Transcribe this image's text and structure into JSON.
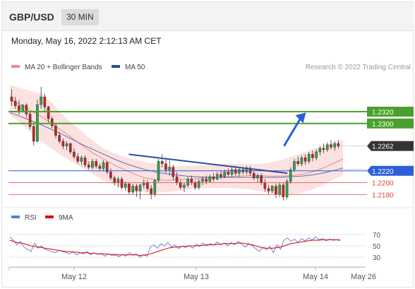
{
  "header": {
    "pair": "GBP/USD",
    "timeframe": "30 MIN"
  },
  "date_line": "Monday, May 16, 2022 2:12:13 AM CET",
  "legend": {
    "items": [
      {
        "label": "MA 20 + Bollinger Bands",
        "color": "#f08c8c"
      },
      {
        "label": "MA 50",
        "color": "#2b4e8c"
      }
    ],
    "credit": "Research © 2022 Trading Central"
  },
  "rsi_legend": {
    "items": [
      {
        "label": "RSI",
        "color": "#5b7fd0"
      },
      {
        "label": "9MA",
        "color": "#e00000"
      }
    ]
  },
  "chart_data": [
    {
      "type": "candlestick",
      "x_ticks": [
        "May 12",
        "May 13",
        "May 14",
        "May 26"
      ],
      "ylim": [
        1.216,
        1.2375
      ],
      "levels": [
        {
          "value": 1.232,
          "label": "1.2320",
          "color": "#4aa02c",
          "kind": "resistance"
        },
        {
          "value": 1.23,
          "label": "1.2300",
          "color": "#4aa02c",
          "kind": "resistance"
        },
        {
          "value": 1.2262,
          "label": "1.2262",
          "color": "#333333",
          "kind": "last-price"
        },
        {
          "value": 1.222,
          "label": "1.2220",
          "color": "#2b5fd8",
          "kind": "pivot"
        },
        {
          "value": 1.22,
          "label": "1.2200",
          "color": "#e04040",
          "kind": "support"
        },
        {
          "value": 1.218,
          "label": "1.2180",
          "color": "#e04040",
          "kind": "support"
        }
      ],
      "series": [
        {
          "name": "MA 20",
          "values": [
            1.234,
            1.2332,
            1.2322,
            1.2312,
            1.23,
            1.2288,
            1.2275,
            1.2262,
            1.225,
            1.224,
            1.223,
            1.2222,
            1.2214,
            1.2208,
            1.2205,
            1.2204,
            1.2205,
            1.2206,
            1.2207,
            1.2208,
            1.2209,
            1.221,
            1.2211,
            1.2212,
            1.2212,
            1.2211,
            1.2211,
            1.2212,
            1.2214,
            1.2218,
            1.2224,
            1.2232,
            1.224
          ]
        },
        {
          "name": "MA 50",
          "values": [
            1.2318,
            1.2312,
            1.2305,
            1.2298,
            1.229,
            1.2282,
            1.2273,
            1.2264,
            1.2256,
            1.2248,
            1.224,
            1.2233,
            1.2227,
            1.2222,
            1.2218,
            1.2215,
            1.2213,
            1.2211,
            1.221,
            1.2209,
            1.2209,
            1.2209,
            1.2209,
            1.2209,
            1.2209,
            1.2209,
            1.2209,
            1.221,
            1.2211,
            1.2213,
            1.2216,
            1.222,
            1.2225
          ]
        },
        {
          "name": "Bollinger upper",
          "values": [
            1.2365,
            1.236,
            1.2355,
            1.235,
            1.2336,
            1.2316,
            1.23,
            1.2285,
            1.227,
            1.2258,
            1.225,
            1.2244,
            1.2239,
            1.2235,
            1.2232,
            1.2229,
            1.2228,
            1.2228,
            1.2229,
            1.223,
            1.2231,
            1.2232,
            1.2232,
            1.2232,
            1.2232,
            1.2234,
            1.2238,
            1.2244,
            1.225,
            1.2256,
            1.2262,
            1.2268,
            1.2272
          ]
        },
        {
          "name": "Bollinger lower",
          "values": [
            1.2315,
            1.23,
            1.2285,
            1.227,
            1.2258,
            1.2245,
            1.2235,
            1.2224,
            1.2214,
            1.2204,
            1.2196,
            1.219,
            1.2186,
            1.2184,
            1.2183,
            1.2184,
            1.2186,
            1.2188,
            1.219,
            1.2191,
            1.2191,
            1.2191,
            1.219,
            1.2189,
            1.2186,
            1.2182,
            1.218,
            1.218,
            1.2183,
            1.2188,
            1.2195,
            1.2205,
            1.2212
          ]
        }
      ],
      "trendline": [
        [
          0.36,
          1.2248
        ],
        [
          0.84,
          1.2216
        ]
      ],
      "arrow": [
        [
          0.83,
          1.2262
        ],
        [
          0.89,
          1.2315
        ]
      ],
      "candles": [
        [
          1.2345,
          1.2358,
          1.233,
          1.2338
        ],
        [
          1.2338,
          1.2345,
          1.2325,
          1.233
        ],
        [
          1.233,
          1.234,
          1.2315,
          1.2322
        ],
        [
          1.2322,
          1.2333,
          1.232,
          1.2331
        ],
        [
          1.2331,
          1.2334,
          1.231,
          1.2316
        ],
        [
          1.2316,
          1.232,
          1.229,
          1.2295
        ],
        [
          1.2295,
          1.23,
          1.2263,
          1.227
        ],
        [
          1.227,
          1.234,
          1.2268,
          1.2332
        ],
        [
          1.2332,
          1.2362,
          1.2325,
          1.2345
        ],
        [
          1.2345,
          1.235,
          1.232,
          1.2328
        ],
        [
          1.2328,
          1.233,
          1.2302,
          1.2308
        ],
        [
          1.2308,
          1.2312,
          1.2292,
          1.2296
        ],
        [
          1.2296,
          1.23,
          1.2275,
          1.228
        ],
        [
          1.228,
          1.2286,
          1.2266,
          1.227
        ],
        [
          1.227,
          1.2275,
          1.2257,
          1.2262
        ],
        [
          1.2262,
          1.227,
          1.2255,
          1.2266
        ],
        [
          1.2266,
          1.2268,
          1.2248,
          1.2252
        ],
        [
          1.2252,
          1.2258,
          1.224,
          1.2244
        ],
        [
          1.2244,
          1.225,
          1.2232,
          1.2236
        ],
        [
          1.2236,
          1.2246,
          1.223,
          1.2242
        ],
        [
          1.2242,
          1.2246,
          1.2226,
          1.223
        ],
        [
          1.223,
          1.2236,
          1.2222,
          1.2226
        ],
        [
          1.2226,
          1.224,
          1.2222,
          1.2236
        ],
        [
          1.2236,
          1.224,
          1.2224,
          1.2228
        ],
        [
          1.2228,
          1.2232,
          1.222,
          1.2224
        ],
        [
          1.2224,
          1.2238,
          1.222,
          1.2234
        ],
        [
          1.2234,
          1.2236,
          1.2214,
          1.2218
        ],
        [
          1.2218,
          1.2224,
          1.2204,
          1.2208
        ],
        [
          1.2208,
          1.2212,
          1.2196,
          1.22
        ],
        [
          1.22,
          1.221,
          1.2192,
          1.2206
        ],
        [
          1.2206,
          1.221,
          1.2188,
          1.2192
        ],
        [
          1.2192,
          1.2202,
          1.2186,
          1.2198
        ],
        [
          1.2198,
          1.22,
          1.218,
          1.2184
        ],
        [
          1.2184,
          1.2198,
          1.218,
          1.2194
        ],
        [
          1.2194,
          1.2198,
          1.2176,
          1.2186
        ],
        [
          1.2186,
          1.2198,
          1.2172,
          1.2196
        ],
        [
          1.2196,
          1.2206,
          1.219,
          1.22
        ],
        [
          1.22,
          1.2205,
          1.2185,
          1.219
        ],
        [
          1.219,
          1.2196,
          1.2172,
          1.218
        ],
        [
          1.218,
          1.2206,
          1.2176,
          1.2204
        ],
        [
          1.2204,
          1.224,
          1.22,
          1.2236
        ],
        [
          1.2236,
          1.2248,
          1.2226,
          1.2232
        ],
        [
          1.2232,
          1.2242,
          1.2216,
          1.2222
        ],
        [
          1.2222,
          1.2238,
          1.2212,
          1.2226
        ],
        [
          1.2226,
          1.223,
          1.2204,
          1.221
        ],
        [
          1.221,
          1.2218,
          1.2196,
          1.22
        ],
        [
          1.22,
          1.2205,
          1.2188,
          1.2192
        ],
        [
          1.2192,
          1.22,
          1.2184,
          1.2196
        ],
        [
          1.2196,
          1.221,
          1.2192,
          1.2206
        ],
        [
          1.2206,
          1.2212,
          1.2196,
          1.22
        ],
        [
          1.22,
          1.2204,
          1.2188,
          1.2192
        ],
        [
          1.2192,
          1.2206,
          1.2188,
          1.2202
        ],
        [
          1.2202,
          1.221,
          1.2196,
          1.2206
        ],
        [
          1.2206,
          1.2212,
          1.2198,
          1.2202
        ],
        [
          1.2202,
          1.2214,
          1.22,
          1.221
        ],
        [
          1.221,
          1.2216,
          1.2202,
          1.2206
        ],
        [
          1.2206,
          1.2218,
          1.2204,
          1.2214
        ],
        [
          1.2214,
          1.222,
          1.2206,
          1.221
        ],
        [
          1.221,
          1.2222,
          1.2208,
          1.2218
        ],
        [
          1.2218,
          1.2224,
          1.221,
          1.2214
        ],
        [
          1.2214,
          1.2226,
          1.221,
          1.2222
        ],
        [
          1.2222,
          1.2228,
          1.2212,
          1.2216
        ],
        [
          1.2216,
          1.2226,
          1.221,
          1.2222
        ],
        [
          1.2222,
          1.2226,
          1.2214,
          1.2218
        ],
        [
          1.2218,
          1.2228,
          1.2214,
          1.2224
        ],
        [
          1.2224,
          1.2228,
          1.2212,
          1.2216
        ],
        [
          1.2216,
          1.222,
          1.2204,
          1.2208
        ],
        [
          1.2208,
          1.2216,
          1.22,
          1.2212
        ],
        [
          1.2212,
          1.2216,
          1.2196,
          1.22
        ],
        [
          1.22,
          1.2206,
          1.2185,
          1.219
        ],
        [
          1.219,
          1.2196,
          1.218,
          1.2186
        ],
        [
          1.2186,
          1.2196,
          1.2182,
          1.2194
        ],
        [
          1.2194,
          1.2198,
          1.2174,
          1.218
        ],
        [
          1.218,
          1.22,
          1.2176,
          1.2196
        ],
        [
          1.2196,
          1.22,
          1.217,
          1.2176
        ],
        [
          1.2176,
          1.2206,
          1.2172,
          1.2202
        ],
        [
          1.2202,
          1.2226,
          1.2198,
          1.2222
        ],
        [
          1.2222,
          1.224,
          1.2218,
          1.2236
        ],
        [
          1.2236,
          1.2244,
          1.2228,
          1.2232
        ],
        [
          1.2232,
          1.2246,
          1.2228,
          1.2242
        ],
        [
          1.2242,
          1.2248,
          1.223,
          1.2236
        ],
        [
          1.2236,
          1.2252,
          1.2232,
          1.2248
        ],
        [
          1.2248,
          1.2254,
          1.2236,
          1.2242
        ],
        [
          1.2242,
          1.2256,
          1.2238,
          1.2252
        ],
        [
          1.2252,
          1.2262,
          1.2246,
          1.2258
        ],
        [
          1.2258,
          1.2266,
          1.225,
          1.2256
        ],
        [
          1.2256,
          1.2268,
          1.2252,
          1.2264
        ],
        [
          1.2264,
          1.2272,
          1.2256,
          1.226
        ],
        [
          1.226,
          1.227,
          1.2254,
          1.2266
        ],
        [
          1.2266,
          1.2272,
          1.2258,
          1.2262
        ]
      ]
    },
    {
      "type": "line",
      "title": "RSI",
      "ylim": [
        20,
        80
      ],
      "y_ticks": [
        30,
        50,
        70
      ],
      "series": [
        {
          "name": "RSI",
          "values": [
            66,
            60,
            52,
            58,
            48,
            44,
            40,
            55,
            46,
            50,
            44,
            42,
            40,
            38,
            42,
            40,
            38,
            36,
            40,
            34,
            38,
            36,
            40,
            34,
            38,
            35,
            37,
            32,
            36,
            33,
            34,
            31,
            35,
            32,
            38,
            34,
            36,
            30,
            34,
            32,
            48,
            52,
            46,
            54,
            50,
            56,
            48,
            52,
            45,
            50,
            47,
            51,
            46,
            53,
            49,
            55,
            50,
            54,
            51,
            57,
            52,
            55,
            50,
            56,
            52,
            58,
            53,
            48,
            54,
            50,
            45,
            40,
            47,
            43,
            49,
            38,
            52,
            44,
            60,
            64,
            58,
            62,
            56,
            63,
            59,
            64,
            60,
            66,
            61,
            63,
            59,
            62,
            60,
            61,
            59
          ]
        },
        {
          "name": "9MA",
          "values": [
            60,
            58,
            56,
            55,
            54,
            52,
            50,
            49,
            48,
            47,
            46,
            45,
            44,
            43,
            42,
            41,
            40,
            40,
            39,
            39,
            38,
            38,
            38,
            37,
            37,
            36,
            36,
            36,
            35,
            35,
            35,
            34,
            34,
            34,
            34,
            34,
            34,
            33,
            34,
            34,
            36,
            38,
            40,
            42,
            44,
            46,
            47,
            48,
            48,
            49,
            49,
            50,
            50,
            50,
            51,
            51,
            52,
            52,
            52,
            53,
            53,
            54,
            54,
            54,
            54,
            55,
            55,
            54,
            53,
            52,
            50,
            48,
            47,
            46,
            46,
            46,
            47,
            48,
            50,
            52,
            54,
            55,
            56,
            57,
            58,
            59,
            60,
            60,
            60,
            61,
            61,
            61,
            61,
            61,
            61
          ]
        }
      ]
    }
  ]
}
